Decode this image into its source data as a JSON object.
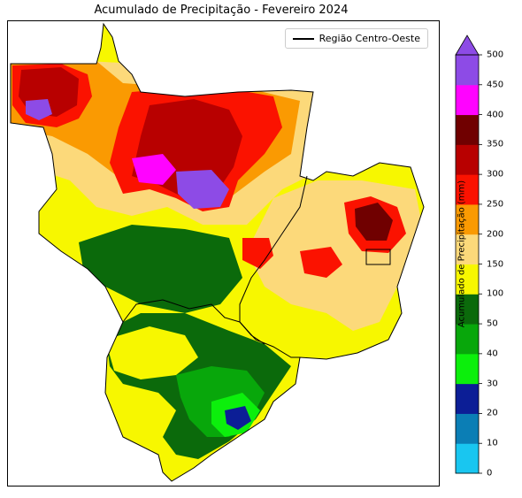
{
  "title": "Acumulado de Precipitação - Fevereiro 2024",
  "legend": {
    "label": "Região Centro-Oeste"
  },
  "colorbar": {
    "label": "Acumulado de Precipitação (mm)",
    "ticks": [
      "0",
      "10",
      "20",
      "30",
      "40",
      "50",
      "100",
      "150",
      "200",
      "250",
      "300",
      "350",
      "400",
      "450",
      "500"
    ],
    "colors": [
      "#19c6f0",
      "#0b7eb5",
      "#0c1e96",
      "#0cef0c",
      "#08a70b",
      "#0b6a0b",
      "#f7f700",
      "#fcd97a",
      "#fa9a02",
      "#fb1200",
      "#b80000",
      "#700000",
      "#ff03ff",
      "#8d4be6"
    ],
    "extend_color": "#8d4be6"
  },
  "map_colors": {
    "low_green": "#0b6a0b",
    "mid_green": "#08a70b",
    "bright_green": "#0cef0c",
    "dark_blue": "#0c1e96",
    "yellow": "#f7f700",
    "light_orange": "#fcd97a",
    "orange": "#fa9a02",
    "red": "#fb1200",
    "dark_red": "#b80000",
    "maroon": "#700000",
    "magenta": "#ff03ff",
    "purple": "#8d4be6"
  }
}
